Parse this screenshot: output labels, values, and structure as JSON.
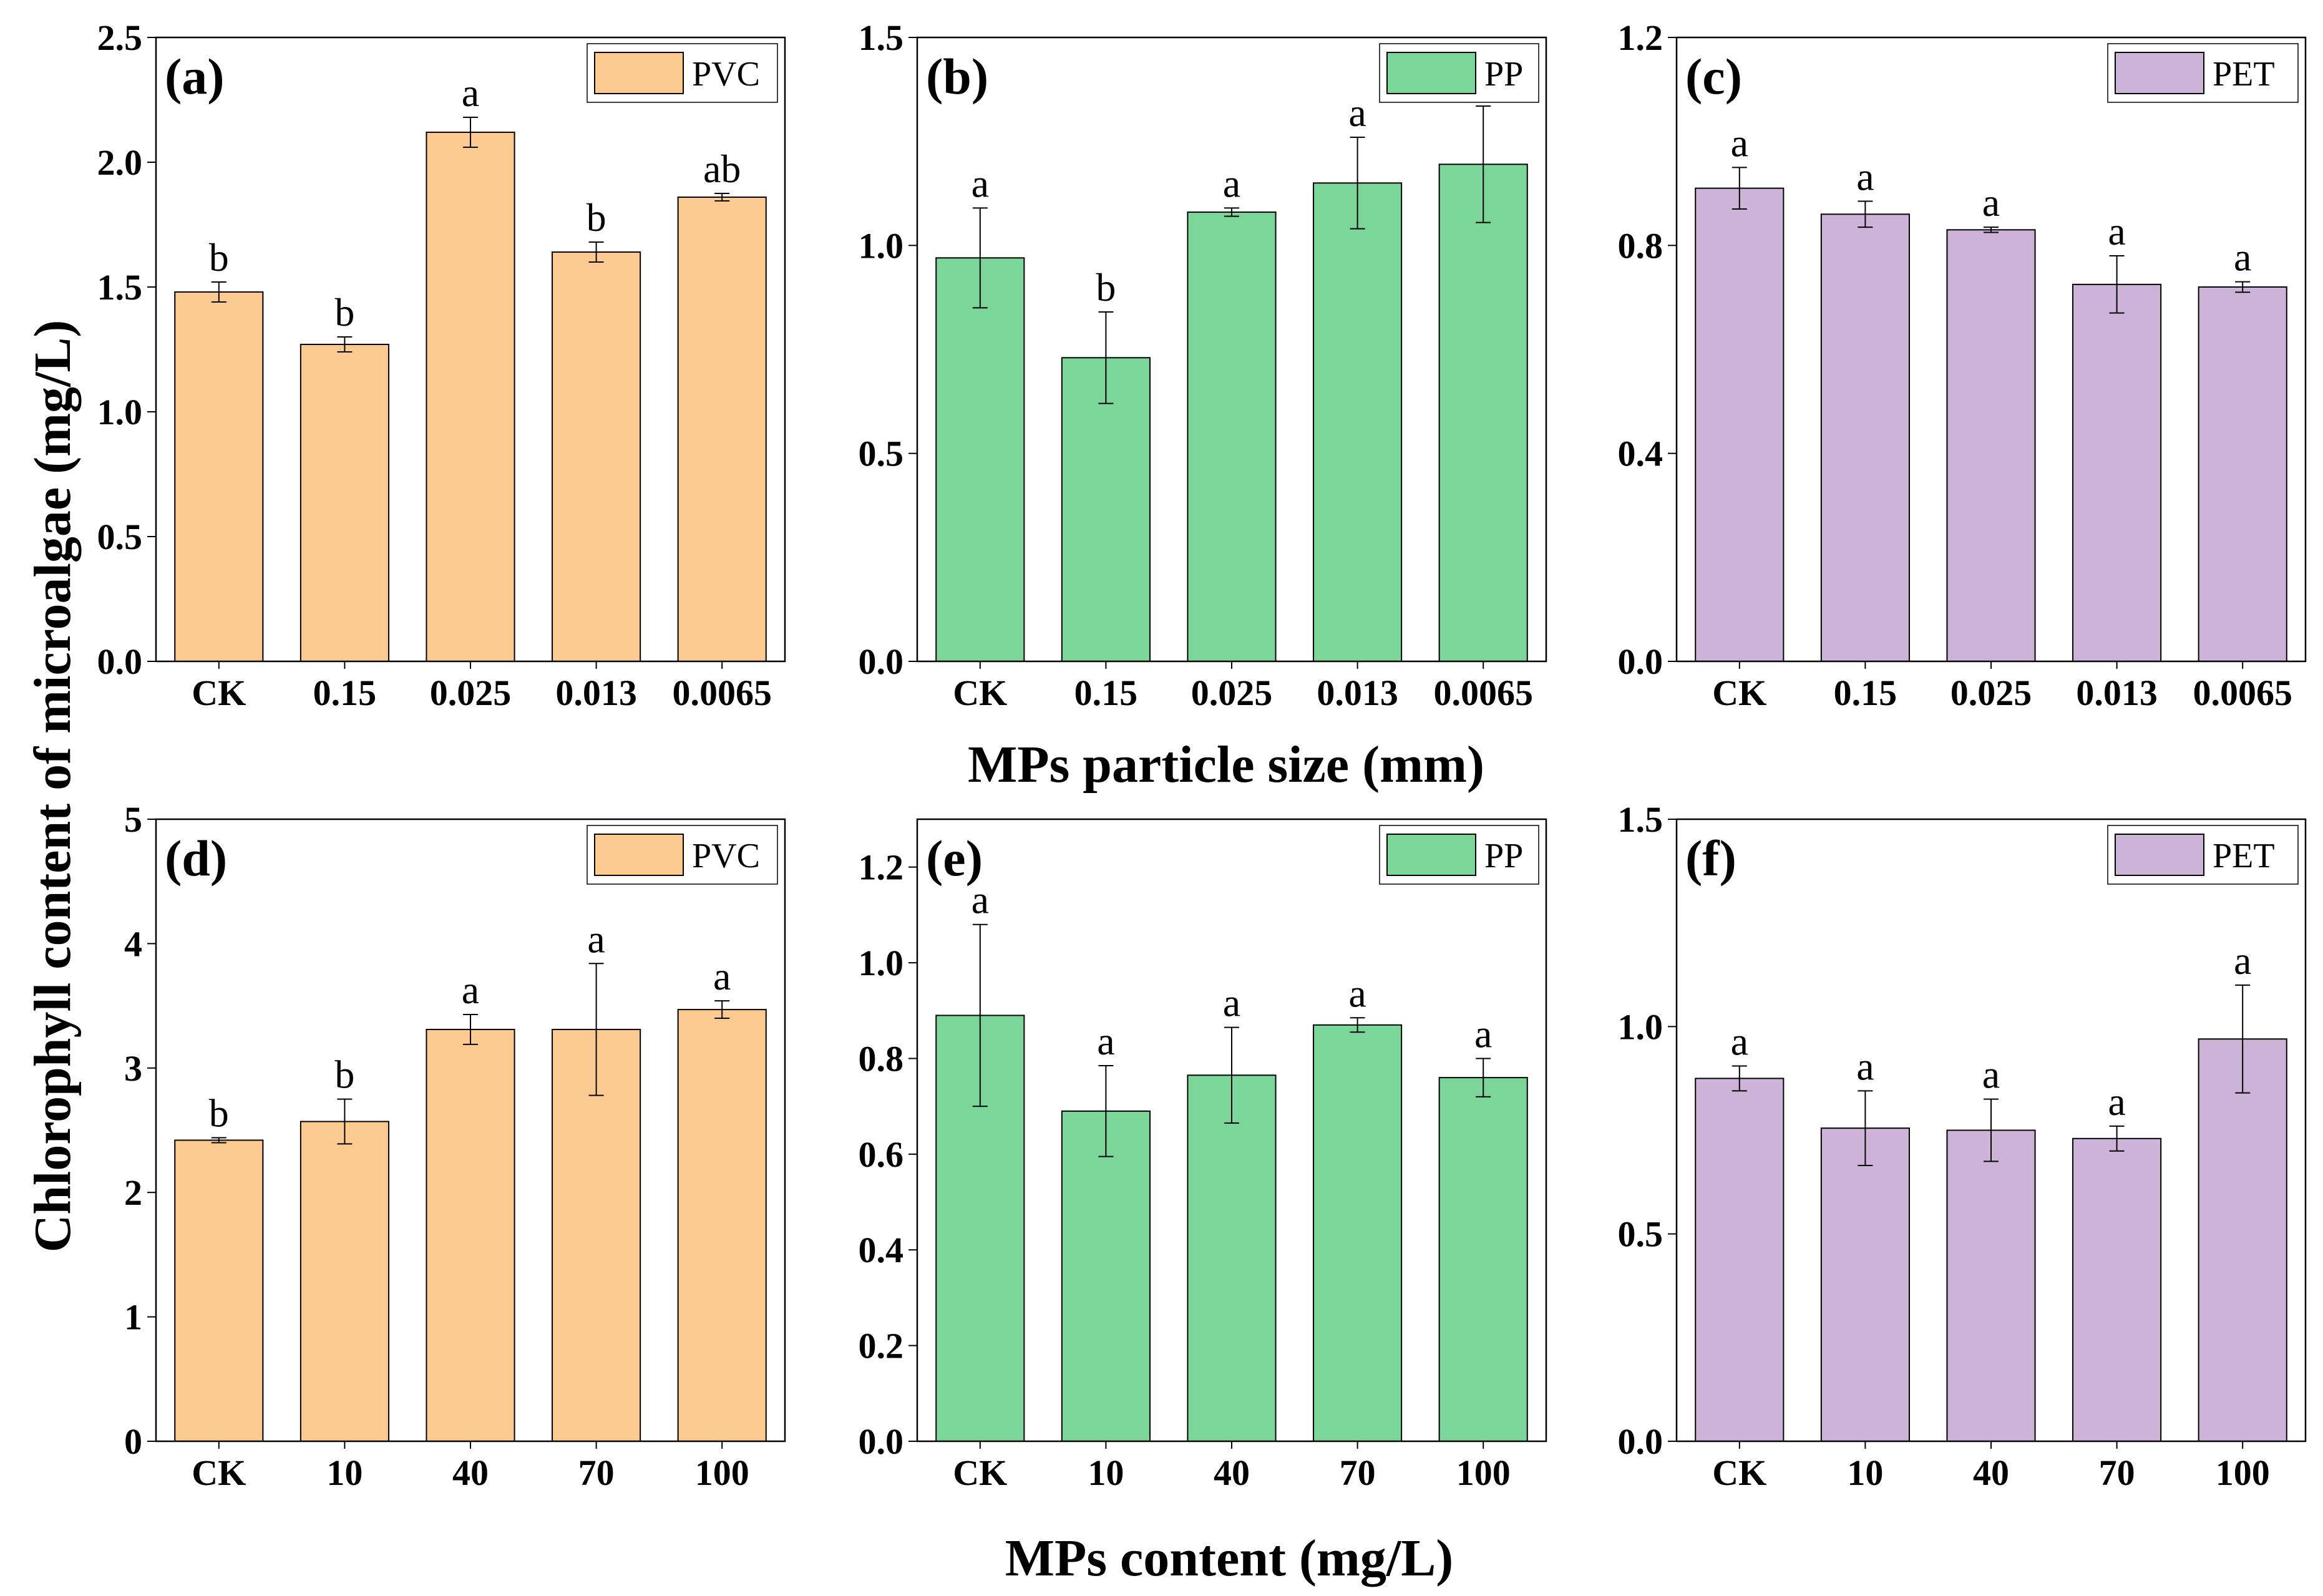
{
  "figure": {
    "ylabel": "Chlorophyll content of microalgae (mg/L)",
    "xlabel_top": "MPs particle size (mm)",
    "xlabel_bottom": "MPs content (mg/L)"
  },
  "colors": {
    "PVC": "#fdcb8f",
    "PP": "#7cd699",
    "PET": "#cdb3d8"
  },
  "chart_data": [
    {
      "id": "a",
      "label": "(a)",
      "type": "bar",
      "legend": "PVC",
      "categories": [
        "CK",
        "0.15",
        "0.025",
        "0.013",
        "0.0065"
      ],
      "values": [
        1.48,
        1.27,
        2.12,
        1.64,
        1.86
      ],
      "errors": [
        0.04,
        0.03,
        0.06,
        0.04,
        0.015
      ],
      "significance": [
        "b",
        "b",
        "a",
        "b",
        "ab"
      ],
      "ylim": [
        0,
        2.5
      ],
      "yticks": [
        0.0,
        0.5,
        1.0,
        1.5,
        2.0,
        2.5
      ],
      "ytick_labels": [
        "0.0",
        "0.5",
        "1.0",
        "1.5",
        "2.0",
        "2.5"
      ]
    },
    {
      "id": "b",
      "label": "(b)",
      "type": "bar",
      "legend": "PP",
      "categories": [
        "CK",
        "0.15",
        "0.025",
        "0.013",
        "0.0065"
      ],
      "values": [
        0.97,
        0.73,
        1.08,
        1.15,
        1.195
      ],
      "errors": [
        0.12,
        0.11,
        0.01,
        0.11,
        0.14
      ],
      "significance": [
        "a",
        "b",
        "a",
        "a",
        "a"
      ],
      "ylim": [
        0,
        1.5
      ],
      "yticks": [
        0.0,
        0.5,
        1.0,
        1.5
      ],
      "ytick_labels": [
        "0.0",
        "0.5",
        "1.0",
        "1.5"
      ]
    },
    {
      "id": "c",
      "label": "(c)",
      "type": "bar",
      "legend": "PET",
      "categories": [
        "CK",
        "0.15",
        "0.025",
        "0.013",
        "0.0065"
      ],
      "values": [
        0.91,
        0.86,
        0.83,
        0.725,
        0.72
      ],
      "errors": [
        0.04,
        0.025,
        0.005,
        0.055,
        0.01
      ],
      "significance": [
        "a",
        "a",
        "a",
        "a",
        "a"
      ],
      "ylim": [
        0,
        1.2
      ],
      "yticks": [
        0.0,
        0.4,
        0.8,
        1.2
      ],
      "ytick_labels": [
        "0.0",
        "0.4",
        "0.8",
        "1.2"
      ]
    },
    {
      "id": "d",
      "label": "(d)",
      "type": "bar",
      "legend": "PVC",
      "categories": [
        "CK",
        "10",
        "40",
        "70",
        "100"
      ],
      "values": [
        2.42,
        2.57,
        3.31,
        3.31,
        3.47
      ],
      "errors": [
        0.02,
        0.18,
        0.12,
        0.53,
        0.07
      ],
      "significance": [
        "b",
        "b",
        "a",
        "a",
        "a"
      ],
      "ylim": [
        0,
        5
      ],
      "yticks": [
        0,
        1,
        2,
        3,
        4,
        5
      ],
      "ytick_labels": [
        "0",
        "1",
        "2",
        "3",
        "4",
        "5"
      ]
    },
    {
      "id": "e",
      "label": "(e)",
      "type": "bar",
      "legend": "PP",
      "categories": [
        "CK",
        "10",
        "40",
        "70",
        "100"
      ],
      "values": [
        0.89,
        0.69,
        0.765,
        0.87,
        0.76
      ],
      "errors": [
        0.19,
        0.095,
        0.1,
        0.015,
        0.04
      ],
      "significance": [
        "a",
        "a",
        "a",
        "a",
        "a"
      ],
      "ylim": [
        0,
        1.3
      ],
      "yticks": [
        0.0,
        0.2,
        0.4,
        0.6,
        0.8,
        1.0,
        1.2
      ],
      "ytick_labels": [
        "0.0",
        "0.2",
        "0.4",
        "0.6",
        "0.8",
        "1.0",
        "1.2"
      ]
    },
    {
      "id": "f",
      "label": "(f)",
      "type": "bar",
      "legend": "PET",
      "categories": [
        "CK",
        "10",
        "40",
        "70",
        "100"
      ],
      "values": [
        0.875,
        0.755,
        0.75,
        0.73,
        0.97
      ],
      "errors": [
        0.03,
        0.09,
        0.075,
        0.03,
        0.13
      ],
      "significance": [
        "a",
        "a",
        "a",
        "a",
        "a"
      ],
      "ylim": [
        0,
        1.5
      ],
      "yticks": [
        0.0,
        0.5,
        1.0,
        1.5
      ],
      "ytick_labels": [
        "0.0",
        "0.5",
        "1.0",
        "1.5"
      ]
    }
  ]
}
